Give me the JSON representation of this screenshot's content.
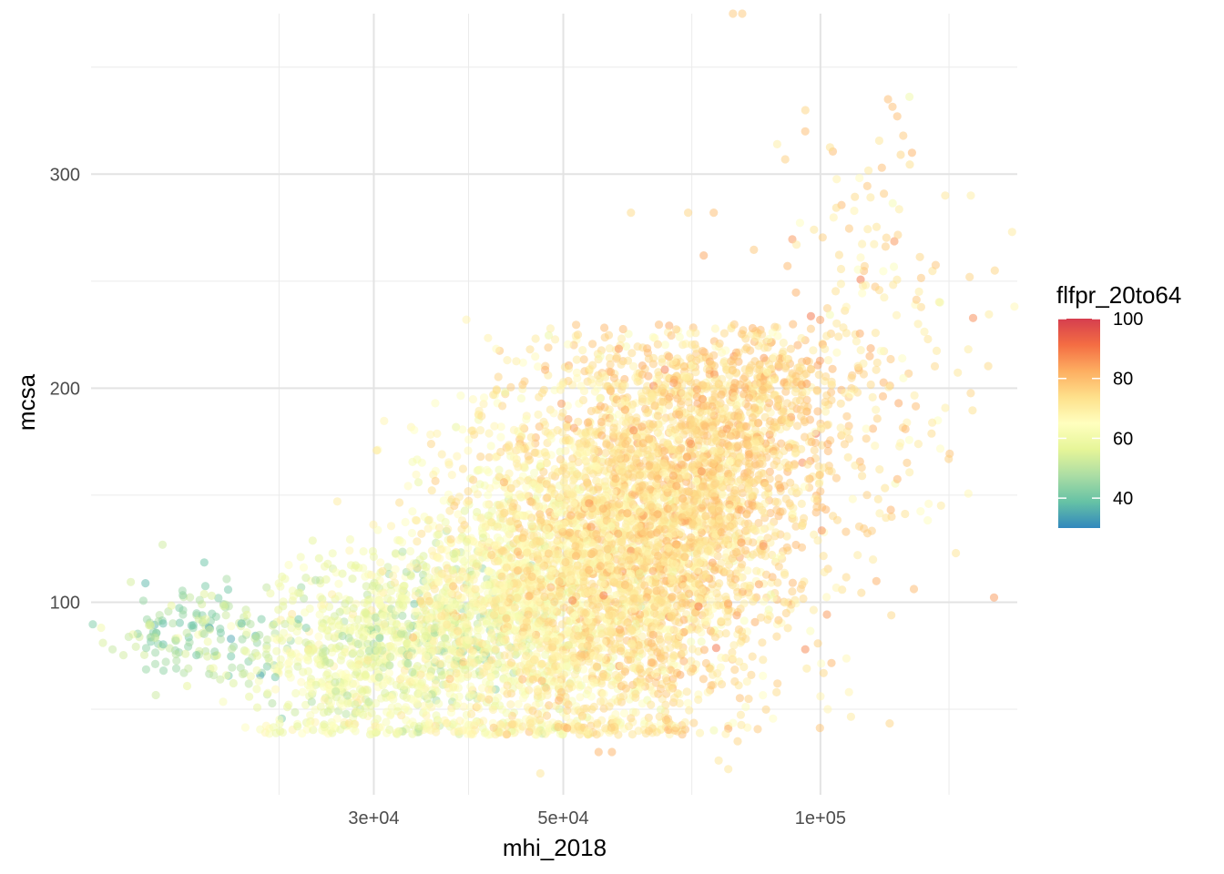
{
  "chart_data": {
    "type": "scatter",
    "xlabel": "mhi_2018",
    "ylabel": "mcsa",
    "x_scale": "log10",
    "xlim": [
      14000,
      170000
    ],
    "ylim": [
      10,
      375
    ],
    "x_ticks": [
      30000,
      50000,
      100000
    ],
    "x_tick_labels": [
      "3e+04",
      "5e+04",
      "1e+05"
    ],
    "y_ticks": [
      100,
      200,
      300
    ],
    "y_tick_labels": [
      "100",
      "200",
      "300"
    ],
    "grid": true,
    "legend": {
      "title": "flfpr_20to64",
      "placement": "right",
      "range": [
        30,
        100
      ],
      "ticks": [
        40,
        60,
        80,
        100
      ],
      "tick_labels": [
        "40",
        "60",
        "80",
        "100"
      ],
      "palette": [
        "#3288bd",
        "#66c2a5",
        "#abdda4",
        "#e6f598",
        "#ffffbf",
        "#fee08b",
        "#fdae61",
        "#f46d43",
        "#d53e4f"
      ]
    },
    "point_alpha": 0.5,
    "clusters": [
      {
        "x": 19000,
        "x_sd": 2600,
        "y": 85,
        "y_sd": 13,
        "c": 48,
        "c_sd": 6,
        "n": 170
      },
      {
        "x": 29000,
        "x_sd": 4500,
        "y": 72,
        "y_sd": 22,
        "c": 60,
        "c_sd": 5,
        "n": 650
      },
      {
        "x": 36000,
        "x_sd": 5000,
        "y": 90,
        "y_sd": 18,
        "c": 55,
        "c_sd": 6,
        "n": 350
      },
      {
        "x": 45000,
        "x_sd": 9000,
        "y": 100,
        "y_sd": 38,
        "c": 65,
        "c_sd": 5,
        "n": 1500
      },
      {
        "x": 58000,
        "x_sd": 11000,
        "y": 125,
        "y_sd": 45,
        "c": 72,
        "c_sd": 5,
        "n": 2300
      },
      {
        "x": 72000,
        "x_sd": 12000,
        "y": 150,
        "y_sd": 42,
        "c": 74,
        "c_sd": 5,
        "n": 1200
      },
      {
        "x": 85000,
        "x_sd": 11000,
        "y": 185,
        "y_sd": 28,
        "c": 76,
        "c_sd": 5,
        "n": 450
      },
      {
        "x": 115000,
        "x_sd": 18000,
        "y": 210,
        "y_sd": 55,
        "c": 74,
        "c_sd": 6,
        "n": 200
      }
    ],
    "points": [
      {
        "x": 79000,
        "y": 375,
        "c": 78
      },
      {
        "x": 81000,
        "y": 375,
        "c": 78
      },
      {
        "x": 120000,
        "y": 335,
        "c": 80
      },
      {
        "x": 123000,
        "y": 327,
        "c": 80
      },
      {
        "x": 125000,
        "y": 318,
        "c": 78
      },
      {
        "x": 96000,
        "y": 320,
        "c": 80
      },
      {
        "x": 128000,
        "y": 310,
        "c": 82
      },
      {
        "x": 89000,
        "y": 314,
        "c": 70
      },
      {
        "x": 118000,
        "y": 303,
        "c": 80
      },
      {
        "x": 140000,
        "y": 290,
        "c": 72
      },
      {
        "x": 150000,
        "y": 290,
        "c": 70
      },
      {
        "x": 60000,
        "y": 282,
        "c": 75
      },
      {
        "x": 70000,
        "y": 282,
        "c": 76
      },
      {
        "x": 75000,
        "y": 282,
        "c": 80
      },
      {
        "x": 73000,
        "y": 262,
        "c": 84
      },
      {
        "x": 160000,
        "y": 255,
        "c": 76
      },
      {
        "x": 52000,
        "y": 225,
        "c": 75
      },
      {
        "x": 38500,
        "y": 232,
        "c": 68
      },
      {
        "x": 47000,
        "y": 20,
        "c": 72
      },
      {
        "x": 78000,
        "y": 22,
        "c": 72
      },
      {
        "x": 76000,
        "y": 26,
        "c": 72
      },
      {
        "x": 80000,
        "y": 35,
        "c": 76
      },
      {
        "x": 57000,
        "y": 30,
        "c": 82
      },
      {
        "x": 55000,
        "y": 30,
        "c": 82
      },
      {
        "x": 17000,
        "y": 90,
        "c": 38
      },
      {
        "x": 21000,
        "y": 90,
        "c": 38
      },
      {
        "x": 23000,
        "y": 65,
        "c": 40
      },
      {
        "x": 22500,
        "y": 70,
        "c": 42
      },
      {
        "x": 24500,
        "y": 92,
        "c": 40
      },
      {
        "x": 25000,
        "y": 88,
        "c": 42
      },
      {
        "x": 100000,
        "y": 56,
        "c": 68
      },
      {
        "x": 108000,
        "y": 58,
        "c": 68
      },
      {
        "x": 102000,
        "y": 50,
        "c": 68
      },
      {
        "x": 96000,
        "y": 78,
        "c": 88
      },
      {
        "x": 72000,
        "y": 98,
        "c": 90
      }
    ]
  }
}
